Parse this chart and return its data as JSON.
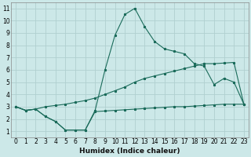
{
  "xlabel": "Humidex (Indice chaleur)",
  "bg_color": "#cce8e8",
  "grid_color": "#b0d0d0",
  "line_color": "#1a6b5a",
  "xlim": [
    -0.5,
    23.5
  ],
  "ylim": [
    0.5,
    11.5
  ],
  "xticks": [
    0,
    1,
    2,
    3,
    4,
    5,
    6,
    7,
    8,
    9,
    10,
    11,
    12,
    13,
    14,
    15,
    16,
    17,
    18,
    19,
    20,
    21,
    22,
    23
  ],
  "yticks": [
    1,
    2,
    3,
    4,
    5,
    6,
    7,
    8,
    9,
    10,
    11
  ],
  "line1_x": [
    0,
    1,
    2,
    3,
    4,
    5,
    6,
    7,
    8,
    9,
    10,
    11,
    12,
    13,
    14,
    15,
    16,
    17,
    18,
    19,
    20,
    21,
    22,
    23
  ],
  "line1_y": [
    3.0,
    2.7,
    2.8,
    3.0,
    3.1,
    3.2,
    3.35,
    3.5,
    3.7,
    4.0,
    4.3,
    4.6,
    5.0,
    5.3,
    5.5,
    5.7,
    5.9,
    6.1,
    6.3,
    6.5,
    6.5,
    6.55,
    6.6,
    3.2
  ],
  "line2_x": [
    0,
    1,
    2,
    3,
    4,
    5,
    6,
    7,
    8,
    9,
    10,
    11,
    12,
    13,
    14,
    15,
    16,
    17,
    18,
    19,
    20,
    21,
    22,
    23
  ],
  "line2_y": [
    3.0,
    2.7,
    2.8,
    2.2,
    1.8,
    1.1,
    1.1,
    1.1,
    2.7,
    6.0,
    8.8,
    10.5,
    11.0,
    9.5,
    8.3,
    7.7,
    7.5,
    7.3,
    6.5,
    6.3,
    4.8,
    5.3,
    5.0,
    3.2
  ],
  "line3_x": [
    0,
    1,
    2,
    3,
    4,
    5,
    6,
    7,
    8,
    9,
    10,
    11,
    12,
    13,
    14,
    15,
    16,
    17,
    18,
    19,
    20,
    21,
    22,
    23
  ],
  "line3_y": [
    3.0,
    2.7,
    2.8,
    2.2,
    1.8,
    1.1,
    1.1,
    1.1,
    2.6,
    2.65,
    2.7,
    2.75,
    2.8,
    2.85,
    2.9,
    2.95,
    3.0,
    3.0,
    3.05,
    3.1,
    3.15,
    3.2,
    3.2,
    3.2
  ]
}
